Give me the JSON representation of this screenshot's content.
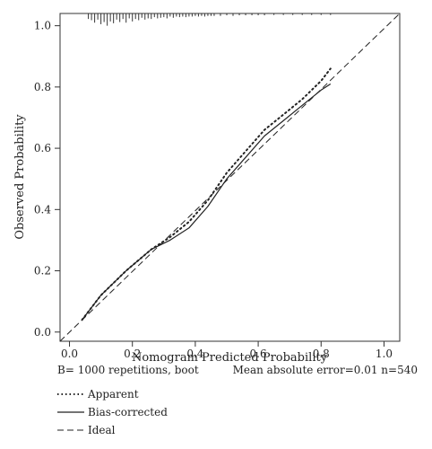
{
  "chart_data": {
    "type": "line",
    "title": "",
    "xlabel": "Nomogram Predicted Probability",
    "ylabel": "Observed Probability",
    "xlim": [
      -0.03,
      1.05
    ],
    "ylim": [
      -0.03,
      1.04
    ],
    "x_ticks": [
      "0.0",
      "0.2",
      "0.4",
      "0.6",
      "0.8",
      "1.0"
    ],
    "y_ticks": [
      "0.0",
      "0.2",
      "0.4",
      "0.6",
      "0.8",
      "1.0"
    ],
    "grid": false,
    "series": [
      {
        "name": "Apparent",
        "style": "dotted",
        "x": [
          0.04,
          0.1,
          0.18,
          0.26,
          0.32,
          0.38,
          0.44,
          0.5,
          0.56,
          0.62,
          0.68,
          0.74,
          0.8,
          0.83
        ],
        "y": [
          0.04,
          0.12,
          0.2,
          0.27,
          0.31,
          0.36,
          0.43,
          0.52,
          0.59,
          0.66,
          0.71,
          0.76,
          0.82,
          0.86
        ]
      },
      {
        "name": "Bias-corrected",
        "style": "solid",
        "x": [
          0.04,
          0.1,
          0.18,
          0.26,
          0.32,
          0.38,
          0.44,
          0.5,
          0.56,
          0.62,
          0.68,
          0.74,
          0.8,
          0.83
        ],
        "y": [
          0.04,
          0.12,
          0.2,
          0.27,
          0.3,
          0.34,
          0.41,
          0.5,
          0.57,
          0.64,
          0.69,
          0.74,
          0.79,
          0.81
        ]
      },
      {
        "name": "Ideal",
        "style": "dashed",
        "x": [
          -0.03,
          1.05
        ],
        "y": [
          -0.03,
          1.05
        ]
      }
    ],
    "rug": {
      "description": "distribution of predicted probabilities",
      "x": [
        0.06,
        0.07,
        0.08,
        0.09,
        0.1,
        0.11,
        0.12,
        0.13,
        0.14,
        0.15,
        0.16,
        0.17,
        0.18,
        0.19,
        0.2,
        0.21,
        0.22,
        0.23,
        0.24,
        0.25,
        0.26,
        0.27,
        0.28,
        0.29,
        0.3,
        0.31,
        0.32,
        0.33,
        0.34,
        0.35,
        0.36,
        0.37,
        0.38,
        0.39,
        0.4,
        0.41,
        0.42,
        0.43,
        0.44,
        0.45,
        0.46,
        0.48,
        0.5,
        0.52,
        0.54,
        0.56,
        0.58,
        0.6,
        0.62,
        0.65,
        0.68,
        0.71,
        0.74,
        0.77,
        0.8,
        0.83
      ],
      "len": [
        0.018,
        0.022,
        0.03,
        0.02,
        0.035,
        0.028,
        0.04,
        0.026,
        0.032,
        0.02,
        0.028,
        0.018,
        0.03,
        0.016,
        0.026,
        0.018,
        0.022,
        0.014,
        0.02,
        0.016,
        0.018,
        0.012,
        0.016,
        0.014,
        0.012,
        0.016,
        0.01,
        0.014,
        0.01,
        0.012,
        0.01,
        0.012,
        0.01,
        0.01,
        0.008,
        0.01,
        0.008,
        0.01,
        0.008,
        0.008,
        0.008,
        0.008,
        0.006,
        0.008,
        0.006,
        0.006,
        0.006,
        0.006,
        0.006,
        0.005,
        0.005,
        0.005,
        0.005,
        0.005,
        0.005,
        0.005
      ]
    },
    "legend_position": "bottom-left",
    "annotations": {
      "left": "B= 1000 repetitions, boot",
      "right": "Mean absolute error=0.01 n=540"
    }
  }
}
